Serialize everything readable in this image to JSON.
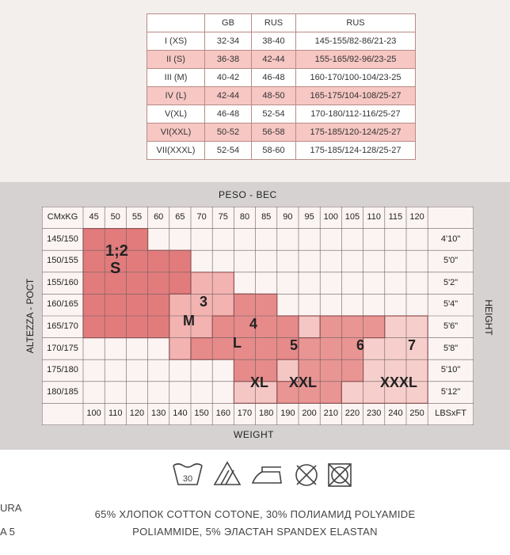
{
  "size_table": {
    "headers": [
      "",
      "GB",
      "RUS",
      "RUS"
    ],
    "rows": [
      {
        "size": "I (XS)",
        "gb": "32-34",
        "rus": "38-40",
        "dims": "145-155/82-86/21-23"
      },
      {
        "size": "II (S)",
        "gb": "36-38",
        "rus": "42-44",
        "dims": "155-165/92-96/23-25"
      },
      {
        "size": "III (M)",
        "gb": "40-42",
        "rus": "46-48",
        "dims": "160-170/100-104/23-25"
      },
      {
        "size": "IV (L)",
        "gb": "42-44",
        "rus": "48-50",
        "dims": "165-175/104-108/25-27"
      },
      {
        "size": "V(XL)",
        "gb": "46-48",
        "rus": "52-54",
        "dims": "170-180/112-116/25-27"
      },
      {
        "size": "VI(XXL)",
        "gb": "50-52",
        "rus": "56-58",
        "dims": "175-185/120-124/25-27"
      },
      {
        "size": "VII(XXXL)",
        "gb": "52-54",
        "rus": "58-60",
        "dims": "175-185/124-128/25-27"
      }
    ]
  },
  "chart": {
    "top_title": "PESO - ВЕС",
    "bottom_title": "WEIGHT",
    "left_title": "ALTEZZA - РОСТ",
    "right_title": "HEIGHT",
    "corner_kg": "CMxKG",
    "corner_lbs": "LBSxFT",
    "kg": [
      "45",
      "50",
      "55",
      "60",
      "65",
      "70",
      "75",
      "80",
      "85",
      "90",
      "95",
      "100",
      "105",
      "110",
      "115",
      "120"
    ],
    "lbs": [
      "100",
      "110",
      "120",
      "130",
      "140",
      "150",
      "160",
      "170",
      "180",
      "190",
      "200",
      "210",
      "220",
      "230",
      "240",
      "250"
    ],
    "cm": [
      "145/150",
      "150/155",
      "155/160",
      "160/165",
      "165/170",
      "170/175",
      "175/180",
      "180/185"
    ],
    "ft": [
      "4'10\"",
      "5'0\"",
      "5'2\"",
      "5'4\"",
      "5'6\"",
      "5'8\"",
      "5'10\"",
      "5'12\""
    ],
    "sizes": {
      "s_num": "1;2",
      "s": "S",
      "m_num": "3",
      "m": "M",
      "l_num": "4",
      "l": "L",
      "xl_num": "5",
      "xl": "XL",
      "xxl_num": "6",
      "xxl": "XXL",
      "xxxl_num": "7",
      "xxxl": "XXXL"
    }
  },
  "care": {
    "wash_temp": "30",
    "icons": [
      "wash-30-icon",
      "bleach-triangle-icon",
      "iron-icon",
      "no-dry-clean-icon",
      "no-tumble-dry-icon"
    ]
  },
  "composition": {
    "line1": "65% ХЛОПОК COTTON COTONE, 30% ПОЛИАМИД POLYAMIDE",
    "line2": "POLIAMMIDE, 5% ЭЛАСТАН SPANDEX ELASTAN",
    "cut_left1": "URA",
    "cut_left2": "A 5"
  }
}
